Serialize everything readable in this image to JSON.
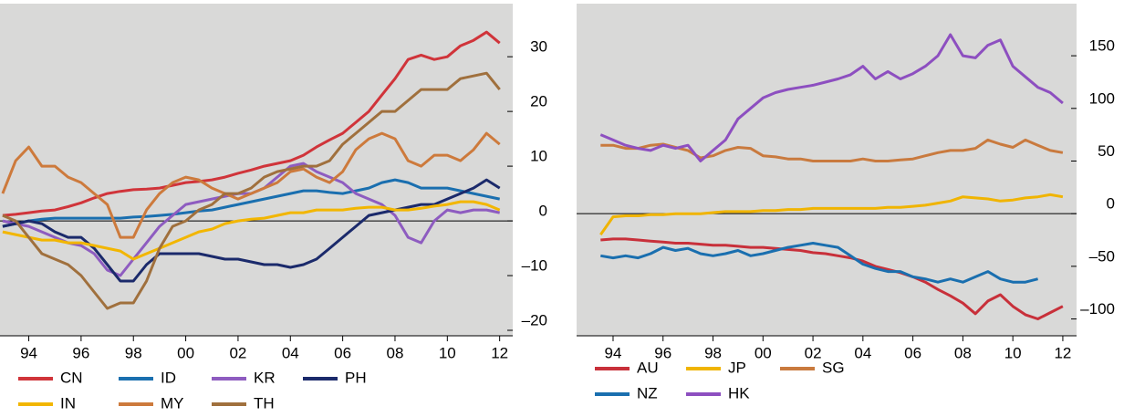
{
  "chart_data": [
    {
      "type": "line",
      "x": [
        1993,
        1993.5,
        1994,
        1994.5,
        1995,
        1995.5,
        1996,
        1996.5,
        1997,
        1997.5,
        1998,
        1998.5,
        1999,
        1999.5,
        2000,
        2000.5,
        2001,
        2001.5,
        2002,
        2002.5,
        2003,
        2003.5,
        2004,
        2004.5,
        2005,
        2005.5,
        2006,
        2006.5,
        2007,
        2007.5,
        2008,
        2008.5,
        2009,
        2009.5,
        2010,
        2010.5,
        2011,
        2011.5,
        2012
      ],
      "series": [
        {
          "name": "CN",
          "color": "#d0343a",
          "values": [
            1,
            1.2,
            1.5,
            1.8,
            2,
            2.6,
            3.3,
            4.2,
            5,
            5.4,
            5.7,
            5.8,
            6,
            6.5,
            7,
            7.2,
            7.5,
            8,
            8.7,
            9.3,
            10,
            10.5,
            11,
            12,
            13.5,
            14.8,
            16,
            18,
            20,
            23,
            26,
            29.5,
            30.3,
            29.5,
            30,
            32,
            33,
            34.5,
            32.5
          ]
        },
        {
          "name": "ID",
          "color": "#1a6faf",
          "values": [
            -1,
            -0.5,
            0,
            0.3,
            0.5,
            0.5,
            0.5,
            0.5,
            0.5,
            0.5,
            0.7,
            0.8,
            1,
            1.2,
            1.5,
            1.8,
            2,
            2.5,
            3,
            3.5,
            4,
            4.5,
            5,
            5.5,
            5.5,
            5.2,
            5,
            5.5,
            6,
            7,
            7.5,
            7,
            6,
            6,
            6,
            5.5,
            5,
            4.5,
            4
          ]
        },
        {
          "name": "KR",
          "color": "#8e5cc0",
          "values": [
            0,
            -0.5,
            -1,
            -2,
            -3,
            -4,
            -4.5,
            -6,
            -9,
            -10,
            -7,
            -4,
            -1,
            1,
            3,
            3.5,
            4,
            4.5,
            5,
            5,
            6,
            8,
            10,
            10.5,
            9,
            8,
            7,
            5,
            4,
            3,
            1,
            -3,
            -4,
            0,
            2,
            1.5,
            2,
            2,
            1.5
          ]
        },
        {
          "name": "PH",
          "color": "#1b2a6b",
          "values": [
            -1,
            -0.5,
            0,
            -0.5,
            -2,
            -3,
            -3,
            -5,
            -8,
            -11,
            -11,
            -8,
            -6,
            -6,
            -6,
            -6,
            -6.5,
            -7,
            -7,
            -7.5,
            -8,
            -8,
            -8.5,
            -8,
            -7,
            -5,
            -3,
            -1,
            1,
            1.5,
            2,
            2.5,
            3,
            3,
            4,
            5,
            6,
            7.5,
            6
          ]
        },
        {
          "name": "IN",
          "color": "#f2b600",
          "values": [
            -2,
            -2.5,
            -3,
            -3.5,
            -3.5,
            -4,
            -4,
            -4.5,
            -5,
            -5.5,
            -7,
            -6,
            -5,
            -4,
            -3,
            -2,
            -1.5,
            -0.5,
            0,
            0.3,
            0.5,
            1,
            1.5,
            1.5,
            2,
            2,
            2,
            2.3,
            2.5,
            2.5,
            2,
            2,
            2.3,
            2.7,
            3,
            3.5,
            3.5,
            3,
            2
          ]
        },
        {
          "name": "MY",
          "color": "#cd7a3c",
          "values": [
            5,
            11,
            13.5,
            10,
            10,
            8,
            7,
            5,
            3,
            -3,
            -3,
            2,
            5,
            7,
            8,
            7.5,
            6,
            5,
            4,
            5,
            6,
            7,
            9,
            9.5,
            8,
            7,
            9,
            13,
            15,
            16,
            15,
            11,
            10,
            12,
            12,
            11,
            13,
            16,
            14
          ]
        },
        {
          "name": "TH",
          "color": "#a0703d",
          "values": [
            1,
            0,
            -3,
            -6,
            -7,
            -8,
            -10,
            -13,
            -16,
            -15,
            -15,
            -11,
            -5,
            -1,
            0,
            2,
            3,
            5,
            5,
            6,
            8,
            9,
            9.5,
            10,
            10,
            11,
            14,
            16,
            18,
            20,
            20,
            22,
            24,
            24,
            24,
            26,
            26.5,
            27,
            24
          ]
        }
      ],
      "xlim": [
        1992.9,
        2012.5
      ],
      "ylim": [
        -21,
        39.7
      ],
      "xticks": [
        {
          "value": 1994,
          "label": "94"
        },
        {
          "value": 1996,
          "label": "96"
        },
        {
          "value": 1998,
          "label": "98"
        },
        {
          "value": 2000,
          "label": "00"
        },
        {
          "value": 2002,
          "label": "02"
        },
        {
          "value": 2004,
          "label": "04"
        },
        {
          "value": 2006,
          "label": "06"
        },
        {
          "value": 2008,
          "label": "08"
        },
        {
          "value": 2010,
          "label": "10"
        },
        {
          "value": 2012,
          "label": "12"
        }
      ],
      "yticks": [
        {
          "value": -20,
          "label": "–20"
        },
        {
          "value": -10,
          "label": "–10"
        },
        0,
        10,
        20,
        30
      ]
    },
    {
      "type": "line",
      "x": [
        1993.5,
        1994,
        1994.5,
        1995,
        1995.5,
        1996,
        1996.5,
        1997,
        1997.5,
        1998,
        1998.5,
        1999,
        1999.5,
        2000,
        2000.5,
        2001,
        2001.5,
        2002,
        2002.5,
        2003,
        2003.5,
        2004,
        2004.5,
        2005,
        2005.5,
        2006,
        2006.5,
        2007,
        2007.5,
        2008,
        2008.5,
        2009,
        2009.5,
        2010,
        2010.5,
        2011,
        2011.5,
        2012
      ],
      "series": [
        {
          "name": "AU",
          "color": "#c8303a",
          "values": [
            -25,
            -24,
            -24,
            -25,
            -26,
            -27,
            -28,
            -28,
            -29,
            -30,
            -30,
            -31,
            -32,
            -32,
            -33,
            -34,
            -35,
            -37,
            -38,
            -40,
            -42,
            -45,
            -50,
            -53,
            -56,
            -60,
            -65,
            -72,
            -78,
            -85,
            -95,
            -83,
            -77,
            -88,
            -96,
            -100,
            -94,
            -88
          ]
        },
        {
          "name": "JP",
          "color": "#f0b400",
          "values": [
            -20,
            -3,
            -2,
            -2,
            -1,
            -1,
            0,
            0,
            0,
            1,
            2,
            2,
            2,
            3,
            3,
            4,
            4,
            5,
            5,
            5,
            5,
            5,
            5,
            6,
            6,
            7,
            8,
            10,
            12,
            16,
            15,
            14,
            12,
            13,
            15,
            16,
            18,
            16
          ]
        },
        {
          "name": "SG",
          "color": "#c97a3e",
          "values": [
            65,
            65,
            62,
            62,
            65,
            66,
            63,
            60,
            53,
            55,
            60,
            63,
            62,
            55,
            54,
            52,
            52,
            50,
            50,
            50,
            50,
            52,
            50,
            50,
            51,
            52,
            55,
            58,
            60,
            60,
            62,
            70,
            66,
            63,
            70,
            65,
            60,
            58
          ]
        },
        {
          "name": "NZ",
          "color": "#1a6faf",
          "values": [
            -40,
            -42,
            -40,
            -42,
            -38,
            -32,
            -35,
            -33,
            -38,
            -40,
            -38,
            -35,
            -40,
            -38,
            -35,
            -32,
            -30,
            -28,
            -30,
            -32,
            -40,
            -48,
            -52,
            -55,
            -55,
            -60,
            -62,
            -65,
            -62,
            -65,
            -60,
            -55,
            -62,
            -65,
            -65,
            -62,
            null,
            null
          ]
        },
        {
          "name": "HK",
          "color": "#8d4fc0",
          "values": [
            75,
            70,
            65,
            62,
            60,
            65,
            62,
            65,
            50,
            60,
            70,
            90,
            100,
            110,
            115,
            118,
            120,
            122,
            125,
            128,
            132,
            140,
            128,
            135,
            128,
            133,
            140,
            150,
            170,
            150,
            148,
            160,
            165,
            140,
            130,
            120,
            115,
            105
          ]
        }
      ],
      "xlim": [
        1992.54,
        2012.55
      ],
      "ylim": [
        -116,
        199.5
      ],
      "xticks": [
        {
          "value": 1994,
          "label": "94"
        },
        {
          "value": 1996,
          "label": "96"
        },
        {
          "value": 1998,
          "label": "98"
        },
        {
          "value": 2000,
          "label": "00"
        },
        {
          "value": 2002,
          "label": "02"
        },
        {
          "value": 2004,
          "label": "04"
        },
        {
          "value": 2006,
          "label": "06"
        },
        {
          "value": 2008,
          "label": "08"
        },
        {
          "value": 2010,
          "label": "10"
        },
        {
          "value": 2012,
          "label": "12"
        }
      ],
      "yticks": [
        {
          "value": -100,
          "label": "–100"
        },
        {
          "value": -50,
          "label": "–50"
        },
        0,
        50,
        100,
        150
      ]
    }
  ]
}
